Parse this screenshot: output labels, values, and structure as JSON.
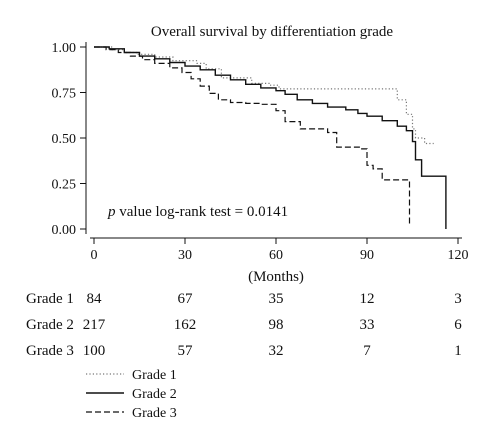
{
  "chart_data": {
    "type": "line",
    "title": "Overall survival by differentiation grade",
    "xlabel": "(Months)",
    "ylabel": "",
    "xlim": [
      0,
      120
    ],
    "ylim": [
      0,
      1
    ],
    "x_ticks": [
      "0",
      "30",
      "60",
      "90",
      "120"
    ],
    "y_ticks": [
      "0.00",
      "0.25",
      "0.50",
      "0.75",
      "1.00"
    ],
    "annotation": {
      "italic": "p",
      "text": " value log-rank test = 0.0141"
    },
    "legend_position": "bottom-left",
    "series": [
      {
        "name": "Grade 1",
        "style": "dotted",
        "color": "#777777",
        "steps": [
          [
            0,
            1.0
          ],
          [
            6,
            0.985
          ],
          [
            10,
            0.97
          ],
          [
            14,
            0.96
          ],
          [
            20,
            0.945
          ],
          [
            26,
            0.925
          ],
          [
            34,
            0.91
          ],
          [
            37,
            0.88
          ],
          [
            42,
            0.83
          ],
          [
            52,
            0.8
          ],
          [
            58,
            0.79
          ],
          [
            61,
            0.77
          ],
          [
            90,
            0.77
          ],
          [
            98,
            0.77
          ],
          [
            100,
            0.71
          ],
          [
            103,
            0.63
          ],
          [
            105,
            0.55
          ],
          [
            106,
            0.5
          ],
          [
            109,
            0.47
          ],
          [
            112,
            0.47
          ]
        ]
      },
      {
        "name": "Grade 2",
        "style": "solid",
        "color": "#111111",
        "steps": [
          [
            0,
            1.0
          ],
          [
            5,
            0.99
          ],
          [
            10,
            0.97
          ],
          [
            15,
            0.95
          ],
          [
            20,
            0.935
          ],
          [
            25,
            0.915
          ],
          [
            30,
            0.895
          ],
          [
            35,
            0.875
          ],
          [
            40,
            0.845
          ],
          [
            45,
            0.82
          ],
          [
            50,
            0.795
          ],
          [
            55,
            0.775
          ],
          [
            60,
            0.76
          ],
          [
            63,
            0.74
          ],
          [
            67,
            0.71
          ],
          [
            72,
            0.69
          ],
          [
            77,
            0.67
          ],
          [
            83,
            0.655
          ],
          [
            87,
            0.635
          ],
          [
            90,
            0.62
          ],
          [
            95,
            0.595
          ],
          [
            100,
            0.565
          ],
          [
            103,
            0.54
          ],
          [
            105,
            0.48
          ],
          [
            106,
            0.38
          ],
          [
            108,
            0.29
          ],
          [
            116,
            0.29
          ],
          [
            116,
            0.0
          ]
        ]
      },
      {
        "name": "Grade 3",
        "style": "dashed",
        "color": "#111111",
        "steps": [
          [
            0,
            1.0
          ],
          [
            4,
            0.985
          ],
          [
            8,
            0.97
          ],
          [
            12,
            0.95
          ],
          [
            16,
            0.93
          ],
          [
            20,
            0.91
          ],
          [
            25,
            0.885
          ],
          [
            29,
            0.86
          ],
          [
            32,
            0.825
          ],
          [
            35,
            0.785
          ],
          [
            38,
            0.745
          ],
          [
            41,
            0.71
          ],
          [
            45,
            0.695
          ],
          [
            50,
            0.69
          ],
          [
            55,
            0.685
          ],
          [
            60,
            0.65
          ],
          [
            63,
            0.59
          ],
          [
            68,
            0.55
          ],
          [
            73,
            0.55
          ],
          [
            77,
            0.53
          ],
          [
            80,
            0.45
          ],
          [
            86,
            0.45
          ],
          [
            88,
            0.44
          ],
          [
            90,
            0.35
          ],
          [
            92,
            0.33
          ],
          [
            95,
            0.27
          ],
          [
            101,
            0.27
          ],
          [
            104,
            0.02
          ]
        ]
      }
    ]
  },
  "risk_table": {
    "times": [
      0,
      30,
      60,
      90,
      120
    ],
    "rows": [
      {
        "label": "Grade 1",
        "values": [
          "84",
          "67",
          "35",
          "12",
          "3"
        ]
      },
      {
        "label": "Grade 2",
        "values": [
          "217",
          "162",
          "98",
          "33",
          "6"
        ]
      },
      {
        "label": "Grade 3",
        "values": [
          "100",
          "57",
          "32",
          "7",
          "1"
        ]
      }
    ]
  }
}
